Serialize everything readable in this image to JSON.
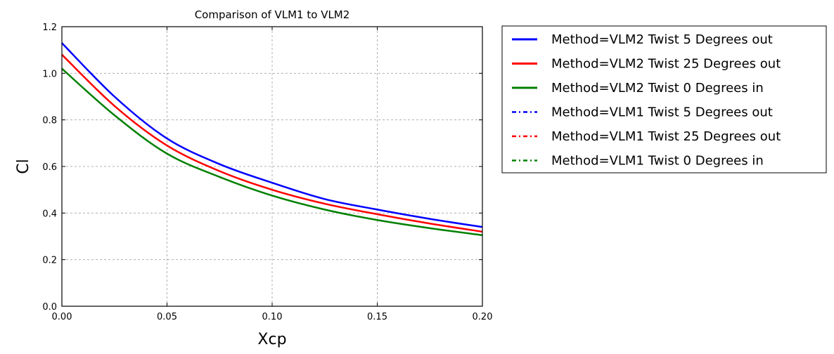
{
  "chart_data": {
    "type": "line",
    "title": "Comparison of VLM1 to VLM2",
    "xlabel": "Xcp",
    "ylabel": "Cl",
    "xlim": [
      0.0,
      0.2
    ],
    "ylim": [
      0.0,
      1.2
    ],
    "x_ticks": [
      0.0,
      0.05,
      0.1,
      0.15,
      0.2
    ],
    "x_tick_labels": [
      "0.00",
      "0.05",
      "0.10",
      "0.15",
      "0.20"
    ],
    "y_ticks": [
      0.0,
      0.2,
      0.4,
      0.6,
      0.8,
      1.0,
      1.2
    ],
    "y_tick_labels": [
      "0.0",
      "0.2",
      "0.4",
      "0.6",
      "0.8",
      "1.0",
      "1.2"
    ],
    "grid": true,
    "legend_placement": "outside-right",
    "x": [
      0.0,
      0.025,
      0.05,
      0.075,
      0.1,
      0.125,
      0.15,
      0.175,
      0.2
    ],
    "series": [
      {
        "name": "Method=VLM2 Twist 5 Degrees out",
        "color": "#0000ff",
        "style": "solid",
        "values": [
          1.13,
          0.9,
          0.72,
          0.61,
          0.53,
          0.46,
          0.415,
          0.375,
          0.34
        ]
      },
      {
        "name": "Method=VLM2 Twist 25 Degrees out",
        "color": "#ff0000",
        "style": "solid",
        "values": [
          1.08,
          0.86,
          0.69,
          0.58,
          0.5,
          0.44,
          0.395,
          0.355,
          0.32
        ]
      },
      {
        "name": "Method=VLM2 Twist 0 Degrees in",
        "color": "#008000",
        "style": "solid",
        "values": [
          1.02,
          0.82,
          0.655,
          0.555,
          0.475,
          0.415,
          0.37,
          0.335,
          0.305
        ]
      },
      {
        "name": "Method=VLM1 Twist 5 Degrees out",
        "color": "#0000ff",
        "style": "dashdot",
        "values": [
          1.13,
          0.9,
          0.72,
          0.61,
          0.53,
          0.46,
          0.415,
          0.375,
          0.34
        ]
      },
      {
        "name": "Method=VLM1 Twist 25 Degrees out",
        "color": "#ff0000",
        "style": "dashdot",
        "values": [
          1.08,
          0.86,
          0.69,
          0.58,
          0.5,
          0.44,
          0.395,
          0.355,
          0.32
        ]
      },
      {
        "name": "Method=VLM1 Twist 0 Degrees in",
        "color": "#008000",
        "style": "dashdot",
        "values": [
          1.02,
          0.82,
          0.655,
          0.555,
          0.475,
          0.415,
          0.37,
          0.335,
          0.305
        ]
      }
    ]
  }
}
